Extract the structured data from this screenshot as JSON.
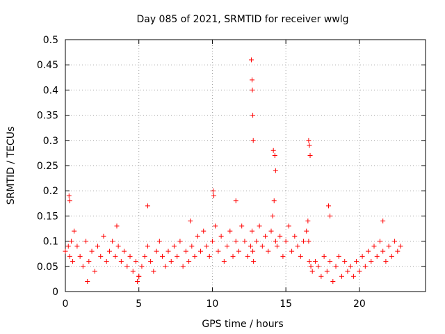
{
  "chart_data": {
    "type": "scatter",
    "title": "Day 085 of 2021, SRMTID for receiver wwlg",
    "xlabel": "GPS time / hours",
    "ylabel": "SRMTID / TECUs",
    "xlim": [
      0,
      24.5
    ],
    "ylim": [
      0,
      0.5
    ],
    "grid": true,
    "x_ticks": [
      0,
      5,
      10,
      15,
      20
    ],
    "x_tick_labels": [
      "0",
      "5",
      "10",
      "15",
      "20"
    ],
    "y_ticks": [
      0,
      0.05,
      0.1,
      0.15,
      0.2,
      0.25,
      0.3,
      0.35,
      0.4,
      0.45,
      0.5
    ],
    "y_tick_labels": [
      "0",
      "0.05",
      "0.1",
      "0.15",
      "0.2",
      "0.25",
      "0.3",
      "0.35",
      "0.4",
      "0.45",
      "0.5"
    ],
    "series": [
      {
        "name": "SRMTID",
        "marker": "+",
        "color": "#ff0000",
        "x": [
          0.0,
          0.2,
          0.3,
          0.4,
          0.5,
          0.6,
          0.8,
          1.0,
          1.2,
          1.4,
          1.6,
          1.8,
          2.0,
          2.2,
          2.4,
          2.6,
          2.8,
          3.0,
          3.2,
          3.4,
          3.6,
          3.8,
          4.0,
          4.2,
          4.4,
          4.6,
          4.8,
          5.0,
          5.2,
          5.4,
          5.6,
          5.8,
          6.0,
          6.2,
          6.4,
          6.6,
          6.8,
          7.0,
          7.2,
          7.4,
          7.6,
          7.8,
          8.0,
          8.2,
          8.4,
          8.6,
          8.8,
          9.0,
          9.2,
          9.4,
          9.6,
          9.8,
          10.0,
          10.2,
          10.4,
          10.6,
          10.8,
          11.0,
          11.2,
          11.4,
          11.6,
          11.8,
          12.0,
          12.2,
          12.4,
          12.6,
          12.7,
          12.75,
          12.8,
          13.0,
          13.2,
          13.4,
          13.6,
          13.8,
          14.0,
          14.1,
          14.2,
          14.3,
          14.4,
          14.6,
          14.8,
          15.0,
          15.2,
          15.4,
          15.6,
          15.8,
          16.0,
          16.2,
          16.4,
          16.5,
          16.55,
          16.6,
          16.7,
          16.8,
          17.0,
          17.2,
          17.4,
          17.6,
          17.8,
          18.0,
          18.2,
          18.4,
          18.6,
          18.8,
          19.0,
          19.2,
          19.4,
          19.6,
          19.8,
          20.0,
          20.2,
          20.4,
          20.6,
          20.8,
          21.0,
          21.2,
          21.4,
          21.6,
          21.8,
          22.0,
          22.2,
          22.4,
          22.6,
          22.8,
          0.25,
          0.3,
          1.5,
          4.9,
          5.0,
          5.6,
          10.05,
          10.1,
          11.6,
          12.65,
          12.7,
          12.72,
          12.75,
          12.78,
          14.15,
          14.25,
          14.3,
          16.55,
          16.6,
          16.65,
          17.9,
          18.0,
          21.6,
          3.5,
          8.5
        ],
        "y": [
          0.08,
          0.09,
          0.07,
          0.1,
          0.06,
          0.12,
          0.09,
          0.07,
          0.05,
          0.1,
          0.06,
          0.08,
          0.04,
          0.09,
          0.07,
          0.11,
          0.06,
          0.08,
          0.1,
          0.07,
          0.09,
          0.06,
          0.08,
          0.05,
          0.07,
          0.04,
          0.06,
          0.03,
          0.05,
          0.07,
          0.09,
          0.06,
          0.04,
          0.08,
          0.1,
          0.07,
          0.05,
          0.08,
          0.06,
          0.09,
          0.07,
          0.1,
          0.05,
          0.08,
          0.06,
          0.09,
          0.07,
          0.11,
          0.08,
          0.12,
          0.09,
          0.07,
          0.1,
          0.13,
          0.08,
          0.11,
          0.06,
          0.09,
          0.12,
          0.07,
          0.1,
          0.08,
          0.13,
          0.1,
          0.07,
          0.09,
          0.12,
          0.08,
          0.06,
          0.1,
          0.13,
          0.09,
          0.11,
          0.08,
          0.12,
          0.15,
          0.18,
          0.1,
          0.09,
          0.11,
          0.07,
          0.1,
          0.13,
          0.08,
          0.11,
          0.09,
          0.07,
          0.1,
          0.12,
          0.14,
          0.1,
          0.06,
          0.05,
          0.04,
          0.06,
          0.05,
          0.03,
          0.07,
          0.04,
          0.06,
          0.02,
          0.05,
          0.07,
          0.03,
          0.06,
          0.04,
          0.05,
          0.03,
          0.06,
          0.04,
          0.07,
          0.05,
          0.08,
          0.06,
          0.09,
          0.07,
          0.1,
          0.08,
          0.06,
          0.09,
          0.07,
          0.1,
          0.08,
          0.09,
          0.19,
          0.18,
          0.02,
          0.02,
          0.03,
          0.17,
          0.2,
          0.19,
          0.18,
          0.46,
          0.42,
          0.4,
          0.35,
          0.3,
          0.28,
          0.27,
          0.24,
          0.3,
          0.29,
          0.27,
          0.17,
          0.15,
          0.14,
          0.13,
          0.14
        ]
      }
    ]
  }
}
